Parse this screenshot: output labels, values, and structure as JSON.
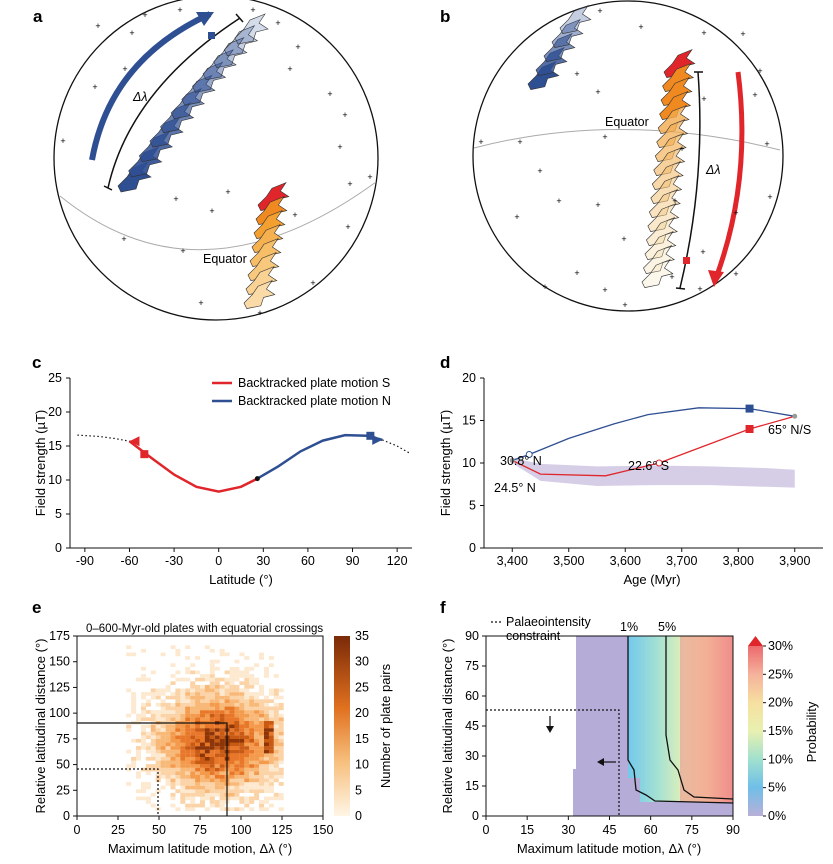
{
  "colors": {
    "red": "#e0262b",
    "blue": "#2f4f93",
    "orange": "#f0a030",
    "purple": "#b9add6",
    "grey": "#999999"
  },
  "panel_a": {
    "label": "a",
    "equator_label": "Equator",
    "delta_label": "Δλ"
  },
  "panel_b": {
    "label": "b",
    "equator_label": "Equator",
    "delta_label": "Δλ"
  },
  "chart_data": [
    {
      "id": "c",
      "type": "line",
      "xlabel": "Latitude (°)",
      "ylabel": "Field strength (µT)",
      "xlim": [
        -100,
        130
      ],
      "ylim": [
        0,
        25
      ],
      "xticks": [
        -90,
        -60,
        -30,
        0,
        30,
        60,
        90,
        120
      ],
      "yticks": [
        0,
        5,
        10,
        15,
        20,
        25
      ],
      "legend": [
        "Backtracked plate motion S",
        "Backtracked plate motion N"
      ],
      "series": [
        {
          "name": "Backtracked plate motion S",
          "x": [
            -60,
            -45,
            -30,
            -15,
            0,
            15,
            26
          ],
          "y": [
            15.7,
            13.2,
            10.8,
            9.0,
            8.3,
            9.0,
            10.2
          ]
        },
        {
          "name": "Backtracked plate motion N",
          "x": [
            26,
            40,
            55,
            70,
            85,
            100,
            110
          ],
          "y": [
            10.2,
            12.0,
            14.2,
            15.8,
            16.6,
            16.5,
            15.9
          ]
        },
        {
          "name": "dipole field (dotted)",
          "x": [
            -95,
            -80,
            -70,
            -60,
            110,
            120,
            128
          ],
          "y": [
            16.6,
            16.4,
            16.1,
            15.7,
            15.9,
            15.0,
            14.0
          ]
        }
      ]
    },
    {
      "id": "d",
      "type": "line",
      "xlabel": "Age (Myr)",
      "ylabel": "Field strength (µT)",
      "xlim": [
        3350,
        3950
      ],
      "ylim": [
        0,
        20
      ],
      "xticks": [
        "3,400",
        "3,500",
        "3,600",
        "3,700",
        "3,800",
        "3,900"
      ],
      "yticks": [
        0,
        5,
        10,
        15,
        20
      ],
      "series": [
        {
          "name": "N path",
          "x": [
            3400,
            3430,
            3500,
            3580,
            3640,
            3730,
            3820,
            3900
          ],
          "y": [
            10.3,
            11.0,
            12.9,
            14.6,
            15.7,
            16.5,
            16.4,
            15.5
          ]
        },
        {
          "name": "S path",
          "x": [
            3400,
            3450,
            3565,
            3660,
            3820,
            3900
          ],
          "y": [
            10.3,
            8.7,
            8.5,
            10.0,
            14.0,
            15.5
          ]
        }
      ],
      "band": {
        "x": [
          3400,
          3450,
          3550,
          3650,
          3750,
          3850,
          3900
        ],
        "upper": [
          10.6,
          9.9,
          9.6,
          9.7,
          9.6,
          9.4,
          9.2
        ],
        "lower": [
          10.0,
          7.9,
          7.3,
          7.4,
          7.4,
          7.2,
          7.1
        ]
      },
      "annotations": [
        "30.8° N",
        "24.5° N",
        "22.6° S",
        "65° N/S"
      ]
    },
    {
      "id": "e",
      "type": "heatmap",
      "title": "0–600-Myr-old plates with equatorial crossings",
      "xlabel": "Maximum latitude motion, Δλ (°)",
      "ylabel": "Relative latitudinal distance (°)",
      "xlim": [
        0,
        150
      ],
      "ylim": [
        0,
        175
      ],
      "xticks": [
        0,
        25,
        50,
        75,
        100,
        125,
        150
      ],
      "yticks": [
        0,
        25,
        50,
        75,
        100,
        125,
        150,
        175
      ],
      "colorbar": {
        "label": "Number of plate pairs",
        "ticks": [
          0,
          5,
          10,
          15,
          20,
          25,
          30,
          35
        ]
      }
    },
    {
      "id": "f",
      "type": "heatmap",
      "xlabel": "Maximum latitude motion, Δλ (°)",
      "ylabel": "Relative latitudinal distance (°)",
      "xlim": [
        0,
        90
      ],
      "ylim": [
        0,
        90
      ],
      "xticks": [
        0,
        15,
        30,
        45,
        60,
        75,
        90
      ],
      "yticks": [
        0,
        15,
        30,
        45,
        60,
        75,
        90
      ],
      "legend": "Palaeointensity constraint",
      "contours": [
        "1%",
        "5%"
      ],
      "colorbar": {
        "label": "Probability",
        "ticks": [
          "0%",
          "5%",
          "10%",
          "15%",
          "20%",
          "25%",
          "30%"
        ]
      }
    }
  ],
  "labels": {
    "c": "c",
    "d": "d",
    "e": "e",
    "f": "f",
    "c_xlabel": "Latitude (°)",
    "c_ylabel": "Field strength (µT)",
    "c_leg_s": "Backtracked plate motion S",
    "c_leg_n": "Backtracked plate motion N",
    "d_xlabel": "Age (Myr)",
    "d_ylabel": "Field strength (µT)",
    "d_ann1": "30.8° N",
    "d_ann2": "24.5° N",
    "d_ann3": "22.6° S",
    "d_ann4": "65° N/S",
    "e_title": "0–600-Myr-old plates with equatorial crossings",
    "e_xlabel": "Maximum latitude motion, Δλ (°)",
    "e_ylabel": "Relative latitudinal distance (°)",
    "e_cbar": "Number of plate pairs",
    "f_xlabel": "Maximum latitude motion, Δλ (°)",
    "f_ylabel": "Relative latitudinal distance (°)",
    "f_leg1": "Palaeointensity",
    "f_leg2": "constraint",
    "f_c1": "1%",
    "f_c5": "5%",
    "f_cbar": "Probability"
  }
}
